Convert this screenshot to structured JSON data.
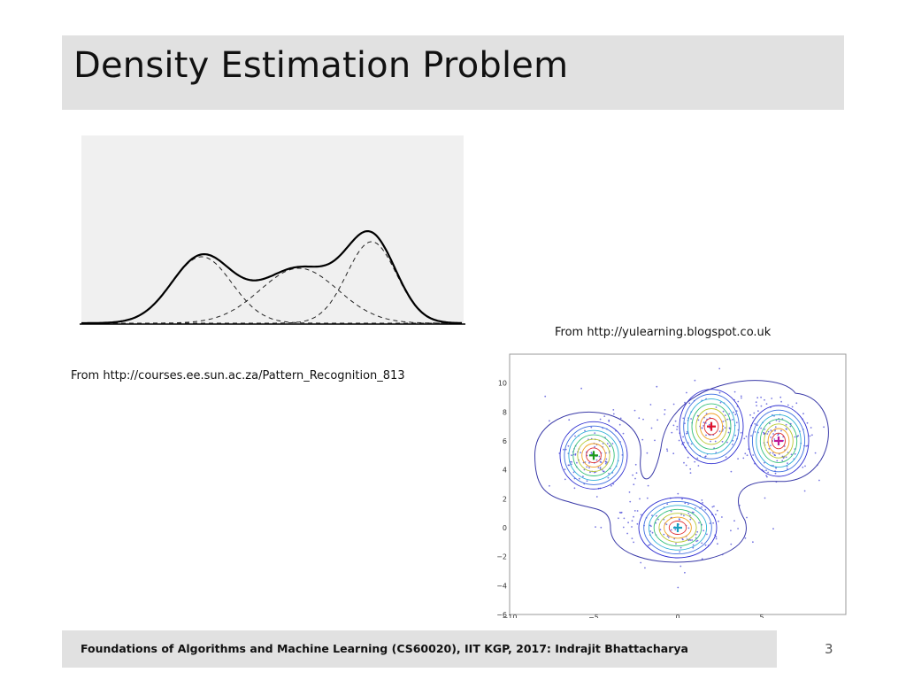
{
  "slide": {
    "title": "Density Estimation Problem",
    "page_number": "3"
  },
  "figures": {
    "mixture_curve": {
      "caption": "From http://courses.ee.sun.ac.za/Pattern_Recognition_813",
      "components": 3
    },
    "contour_plot": {
      "caption": "From http://yulearning.blogspot.co.uk",
      "x_ticks": [
        "−10",
        "−5",
        "0",
        "5"
      ],
      "y_ticks": [
        "10",
        "8",
        "6",
        "4",
        "2",
        "0",
        "−2",
        "−4",
        "−6"
      ],
      "xlim": [
        -10,
        10
      ],
      "ylim": [
        -6,
        12
      ],
      "clusters": [
        {
          "center": [
            -5,
            5
          ],
          "color": "#1a9a1a"
        },
        {
          "center": [
            2,
            7
          ],
          "color": "#e0112a"
        },
        {
          "center": [
            6,
            6
          ],
          "color": "#c01b9a"
        },
        {
          "center": [
            0,
            0
          ],
          "color": "#1aa0c0"
        }
      ]
    }
  },
  "footer": {
    "text": "Foundations of Algorithms and Machine Learning (CS60020), IIT KGP, 2017: Indrajit Bhattacharya"
  }
}
